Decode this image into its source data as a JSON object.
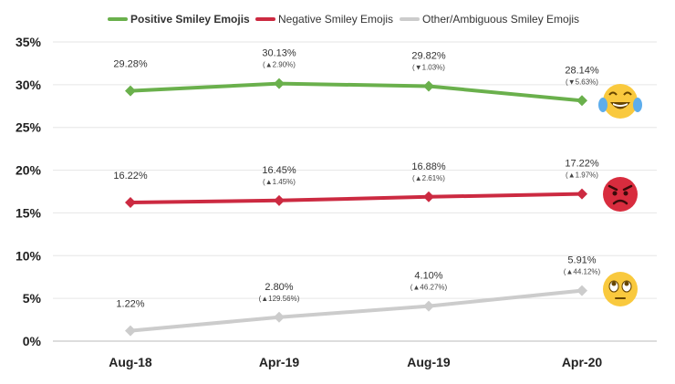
{
  "chart_data": {
    "type": "line",
    "title": "",
    "xlabel": "",
    "ylabel": "",
    "categories": [
      "Aug-18",
      "Apr-19",
      "Aug-19",
      "Apr-20"
    ],
    "ylim": [
      0,
      35
    ],
    "yticks": [
      "0%",
      "5%",
      "10%",
      "15%",
      "20%",
      "25%",
      "30%",
      "35%"
    ],
    "grid": true,
    "legend_position": "top",
    "series": [
      {
        "name": "Positive Smiley Emojis",
        "color": "#6ab04c",
        "values": [
          29.28,
          30.13,
          29.82,
          28.14
        ],
        "labels": [
          "29.28%",
          "30.13%",
          "29.82%",
          "28.14%"
        ],
        "changes": [
          "",
          "(▲2.90%)",
          "(▼1.03%)",
          "(▼5.63%)"
        ],
        "icon": "tears-of-joy-emoji"
      },
      {
        "name": "Negative Smiley Emojis",
        "color": "#cc2a41",
        "values": [
          16.22,
          16.45,
          16.88,
          17.22
        ],
        "labels": [
          "16.22%",
          "16.45%",
          "16.88%",
          "17.22%"
        ],
        "changes": [
          "",
          "(▲1.45%)",
          "(▲2.61%)",
          "(▲1.97%)"
        ],
        "icon": "angry-face-emoji"
      },
      {
        "name": "Other/Ambiguous Smiley Emojis",
        "color": "#cccccc",
        "values": [
          1.22,
          2.8,
          4.1,
          5.91
        ],
        "labels": [
          "1.22%",
          "2.80%",
          "4.10%",
          "5.91%"
        ],
        "changes": [
          "",
          "(▲129.56%)",
          "(▲46.27%)",
          "(▲44.12%)"
        ],
        "icon": "eye-roll-emoji"
      }
    ]
  }
}
